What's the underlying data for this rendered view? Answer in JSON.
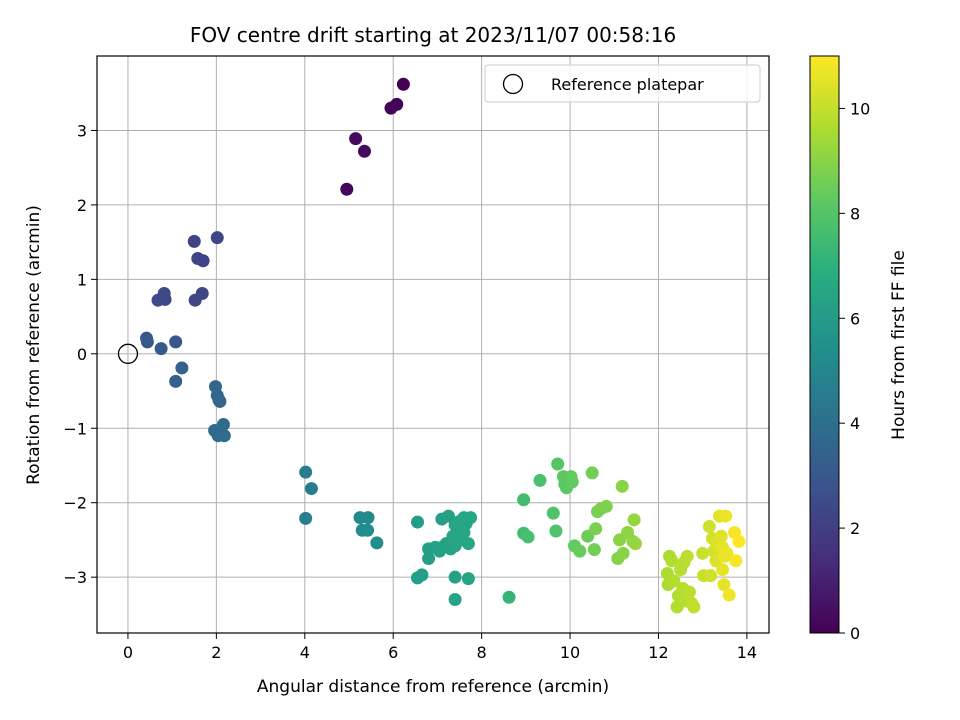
{
  "chart_data": {
    "type": "scatter",
    "title": "FOV centre drift starting at 2023/11/07 00:58:16",
    "xlabel": "Angular distance from reference (arcmin)",
    "ylabel": "Rotation from reference (arcmin)",
    "xlim": [
      -0.7,
      14.5
    ],
    "ylim": [
      -3.75,
      4.0
    ],
    "x_ticks": [
      0,
      2,
      4,
      6,
      8,
      10,
      12,
      14
    ],
    "y_ticks": [
      -3,
      -2,
      -1,
      0,
      1,
      2,
      3
    ],
    "grid": true,
    "legend": {
      "placement": "top-right",
      "entries": [
        "Reference platepar"
      ]
    },
    "reference_point": {
      "x": 0,
      "y": 0,
      "label": "Reference platepar"
    },
    "colorbar": {
      "label": "Hours from first FF file",
      "min": 0,
      "max": 11,
      "ticks": [
        0,
        2,
        4,
        6,
        8,
        10
      ],
      "colormap": "viridis"
    },
    "points": [
      {
        "x": 4.95,
        "y": 2.21,
        "c": 0.2
      },
      {
        "x": 5.15,
        "y": 2.89,
        "c": 0.3
      },
      {
        "x": 5.35,
        "y": 2.72,
        "c": 0.3
      },
      {
        "x": 5.95,
        "y": 3.3,
        "c": 0.1
      },
      {
        "x": 6.08,
        "y": 3.35,
        "c": 0.1
      },
      {
        "x": 6.23,
        "y": 3.62,
        "c": 0.0
      },
      {
        "x": 1.5,
        "y": 1.51,
        "c": 2.2
      },
      {
        "x": 2.02,
        "y": 1.56,
        "c": 2.3
      },
      {
        "x": 1.58,
        "y": 1.28,
        "c": 2.2
      },
      {
        "x": 1.7,
        "y": 1.25,
        "c": 2.2
      },
      {
        "x": 1.68,
        "y": 0.81,
        "c": 2.3
      },
      {
        "x": 1.52,
        "y": 0.72,
        "c": 2.3
      },
      {
        "x": 0.82,
        "y": 0.81,
        "c": 2.4
      },
      {
        "x": 0.68,
        "y": 0.72,
        "c": 2.5
      },
      {
        "x": 0.84,
        "y": 0.73,
        "c": 2.4
      },
      {
        "x": 0.42,
        "y": 0.21,
        "c": 3.0
      },
      {
        "x": 0.44,
        "y": 0.16,
        "c": 3.0
      },
      {
        "x": 1.08,
        "y": 0.16,
        "c": 3.0
      },
      {
        "x": 0.75,
        "y": 0.07,
        "c": 3.1
      },
      {
        "x": 1.22,
        "y": -0.19,
        "c": 3.3
      },
      {
        "x": 1.08,
        "y": -0.37,
        "c": 3.3
      },
      {
        "x": 1.98,
        "y": -0.44,
        "c": 3.6
      },
      {
        "x": 2.02,
        "y": -0.56,
        "c": 3.6
      },
      {
        "x": 2.06,
        "y": -0.62,
        "c": 3.6
      },
      {
        "x": 2.08,
        "y": -0.64,
        "c": 3.6
      },
      {
        "x": 1.96,
        "y": -1.03,
        "c": 3.8
      },
      {
        "x": 2.16,
        "y": -0.95,
        "c": 3.8
      },
      {
        "x": 2.04,
        "y": -1.1,
        "c": 3.8
      },
      {
        "x": 2.18,
        "y": -1.1,
        "c": 3.8
      },
      {
        "x": 4.02,
        "y": -1.59,
        "c": 4.6
      },
      {
        "x": 4.15,
        "y": -1.81,
        "c": 4.6
      },
      {
        "x": 4.02,
        "y": -2.21,
        "c": 4.7
      },
      {
        "x": 5.25,
        "y": -2.2,
        "c": 5.2
      },
      {
        "x": 5.43,
        "y": -2.2,
        "c": 5.2
      },
      {
        "x": 5.3,
        "y": -2.37,
        "c": 5.2
      },
      {
        "x": 5.42,
        "y": -2.37,
        "c": 5.3
      },
      {
        "x": 5.63,
        "y": -2.54,
        "c": 5.3
      },
      {
        "x": 6.55,
        "y": -2.26,
        "c": 6.0
      },
      {
        "x": 6.55,
        "y": -3.01,
        "c": 6.1
      },
      {
        "x": 6.65,
        "y": -2.97,
        "c": 6.1
      },
      {
        "x": 6.8,
        "y": -2.62,
        "c": 6.1
      },
      {
        "x": 6.8,
        "y": -2.75,
        "c": 6.1
      },
      {
        "x": 6.95,
        "y": -2.6,
        "c": 6.2
      },
      {
        "x": 7.05,
        "y": -2.65,
        "c": 6.2
      },
      {
        "x": 7.1,
        "y": -2.22,
        "c": 6.2
      },
      {
        "x": 7.1,
        "y": -2.6,
        "c": 6.3
      },
      {
        "x": 7.2,
        "y": -2.55,
        "c": 6.3
      },
      {
        "x": 7.25,
        "y": -2.18,
        "c": 6.3
      },
      {
        "x": 7.3,
        "y": -2.62,
        "c": 6.3
      },
      {
        "x": 7.35,
        "y": -2.45,
        "c": 6.4
      },
      {
        "x": 7.4,
        "y": -2.3,
        "c": 6.4
      },
      {
        "x": 7.4,
        "y": -2.58,
        "c": 6.4
      },
      {
        "x": 7.45,
        "y": -2.38,
        "c": 6.4
      },
      {
        "x": 7.5,
        "y": -2.25,
        "c": 6.4
      },
      {
        "x": 7.55,
        "y": -2.5,
        "c": 6.5
      },
      {
        "x": 7.6,
        "y": -2.2,
        "c": 6.5
      },
      {
        "x": 7.6,
        "y": -2.4,
        "c": 6.5
      },
      {
        "x": 7.65,
        "y": -2.28,
        "c": 6.5
      },
      {
        "x": 7.7,
        "y": -2.55,
        "c": 6.5
      },
      {
        "x": 7.75,
        "y": -2.2,
        "c": 6.5
      },
      {
        "x": 7.4,
        "y": -3.0,
        "c": 6.3
      },
      {
        "x": 7.7,
        "y": -3.02,
        "c": 6.4
      },
      {
        "x": 7.4,
        "y": -3.3,
        "c": 6.4
      },
      {
        "x": 8.62,
        "y": -3.27,
        "c": 7.2
      },
      {
        "x": 8.95,
        "y": -1.96,
        "c": 7.6
      },
      {
        "x": 8.95,
        "y": -2.41,
        "c": 7.6
      },
      {
        "x": 9.05,
        "y": -2.46,
        "c": 7.7
      },
      {
        "x": 9.32,
        "y": -1.7,
        "c": 7.8
      },
      {
        "x": 9.62,
        "y": -2.14,
        "c": 7.9
      },
      {
        "x": 9.68,
        "y": -2.38,
        "c": 7.9
      },
      {
        "x": 9.72,
        "y": -1.48,
        "c": 8.0
      },
      {
        "x": 9.85,
        "y": -1.65,
        "c": 8.2
      },
      {
        "x": 9.88,
        "y": -1.75,
        "c": 8.2
      },
      {
        "x": 9.92,
        "y": -1.8,
        "c": 8.2
      },
      {
        "x": 10.02,
        "y": -1.65,
        "c": 8.3
      },
      {
        "x": 10.05,
        "y": -1.72,
        "c": 8.3
      },
      {
        "x": 10.1,
        "y": -2.58,
        "c": 8.3
      },
      {
        "x": 10.22,
        "y": -2.65,
        "c": 8.4
      },
      {
        "x": 10.4,
        "y": -2.45,
        "c": 8.5
      },
      {
        "x": 10.5,
        "y": -1.6,
        "c": 8.6
      },
      {
        "x": 10.55,
        "y": -2.63,
        "c": 8.6
      },
      {
        "x": 10.58,
        "y": -2.35,
        "c": 8.7
      },
      {
        "x": 10.62,
        "y": -2.12,
        "c": 8.7
      },
      {
        "x": 10.7,
        "y": -2.08,
        "c": 8.7
      },
      {
        "x": 10.82,
        "y": -2.05,
        "c": 8.8
      },
      {
        "x": 11.08,
        "y": -2.75,
        "c": 8.9
      },
      {
        "x": 11.12,
        "y": -2.5,
        "c": 9.0
      },
      {
        "x": 11.18,
        "y": -1.78,
        "c": 9.0
      },
      {
        "x": 11.2,
        "y": -2.68,
        "c": 9.0
      },
      {
        "x": 11.3,
        "y": -2.4,
        "c": 9.1
      },
      {
        "x": 11.42,
        "y": -2.52,
        "c": 9.1
      },
      {
        "x": 11.45,
        "y": -2.23,
        "c": 9.2
      },
      {
        "x": 11.48,
        "y": -2.55,
        "c": 9.2
      },
      {
        "x": 12.2,
        "y": -2.95,
        "c": 9.6
      },
      {
        "x": 12.22,
        "y": -3.1,
        "c": 9.6
      },
      {
        "x": 12.25,
        "y": -2.72,
        "c": 9.6
      },
      {
        "x": 12.3,
        "y": -2.78,
        "c": 9.7
      },
      {
        "x": 12.35,
        "y": -3.05,
        "c": 9.7
      },
      {
        "x": 12.42,
        "y": -3.4,
        "c": 9.7
      },
      {
        "x": 12.45,
        "y": -3.25,
        "c": 9.7
      },
      {
        "x": 12.5,
        "y": -2.9,
        "c": 9.8
      },
      {
        "x": 12.55,
        "y": -3.15,
        "c": 9.8
      },
      {
        "x": 12.58,
        "y": -2.8,
        "c": 9.8
      },
      {
        "x": 12.62,
        "y": -3.32,
        "c": 9.8
      },
      {
        "x": 12.65,
        "y": -2.72,
        "c": 9.9
      },
      {
        "x": 12.7,
        "y": -3.2,
        "c": 9.9
      },
      {
        "x": 12.75,
        "y": -3.35,
        "c": 9.9
      },
      {
        "x": 12.8,
        "y": -3.4,
        "c": 10.0
      },
      {
        "x": 13.0,
        "y": -2.68,
        "c": 10.1
      },
      {
        "x": 13.02,
        "y": -2.98,
        "c": 10.1
      },
      {
        "x": 13.15,
        "y": -2.32,
        "c": 10.2
      },
      {
        "x": 13.18,
        "y": -2.98,
        "c": 10.2
      },
      {
        "x": 13.22,
        "y": -2.48,
        "c": 10.3
      },
      {
        "x": 13.25,
        "y": -2.65,
        "c": 10.3
      },
      {
        "x": 13.3,
        "y": -2.78,
        "c": 10.4
      },
      {
        "x": 13.32,
        "y": -2.55,
        "c": 10.4
      },
      {
        "x": 13.38,
        "y": -2.18,
        "c": 10.5
      },
      {
        "x": 13.42,
        "y": -2.45,
        "c": 10.5
      },
      {
        "x": 13.45,
        "y": -2.6,
        "c": 10.6
      },
      {
        "x": 13.45,
        "y": -2.9,
        "c": 10.6
      },
      {
        "x": 13.48,
        "y": -3.1,
        "c": 10.6
      },
      {
        "x": 13.5,
        "y": -2.72,
        "c": 10.7
      },
      {
        "x": 13.52,
        "y": -2.18,
        "c": 10.7
      },
      {
        "x": 13.55,
        "y": -2.68,
        "c": 10.7
      },
      {
        "x": 13.6,
        "y": -3.24,
        "c": 10.8
      },
      {
        "x": 13.72,
        "y": -2.4,
        "c": 10.9
      },
      {
        "x": 13.75,
        "y": -2.78,
        "c": 10.9
      },
      {
        "x": 13.82,
        "y": -2.52,
        "c": 11.0
      }
    ]
  }
}
